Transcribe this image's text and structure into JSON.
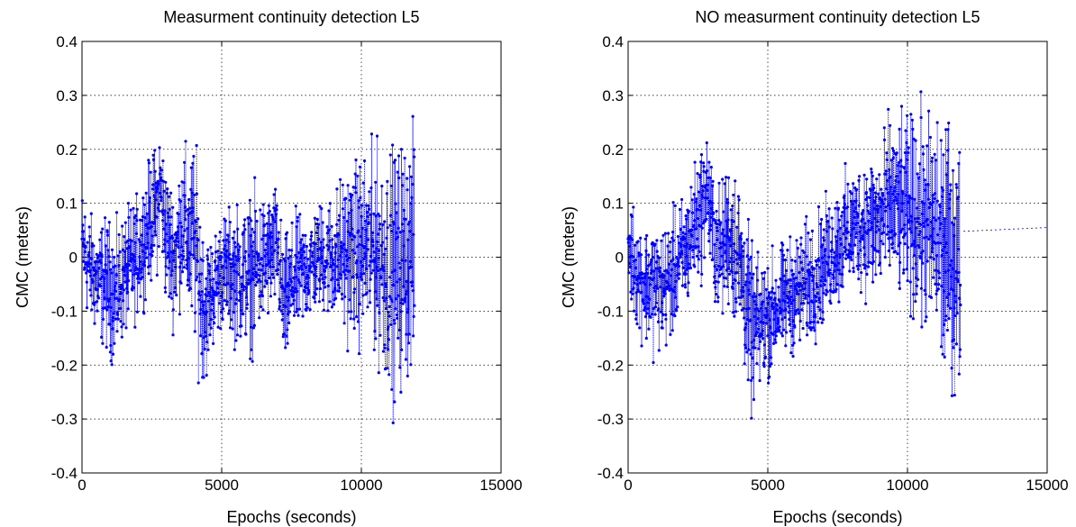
{
  "colors": {
    "series": "#0000ff",
    "axes": "#000000",
    "background": "#ffffff"
  },
  "chart_data": [
    {
      "type": "scatter",
      "title": "Measurment continuity detection L5",
      "xlabel": "Epochs (seconds)",
      "ylabel": "CMC (meters)",
      "xlim": [
        0,
        15000
      ],
      "ylim": [
        -0.4,
        0.4
      ],
      "xticks": [
        "0",
        "5000",
        "10000",
        "15000"
      ],
      "yticks": [
        "0.4",
        "0.3",
        "0.2",
        "0.1",
        "0",
        "-0.1",
        "-0.2",
        "-0.3",
        "-0.4"
      ],
      "grid": true,
      "marker": "dot-with-dotted-lines",
      "series": [
        {
          "x": [
            0,
            300,
            600,
            900,
            1200,
            1500,
            1800,
            2100,
            2400,
            2700,
            2800,
            3000,
            3300,
            3600,
            3900,
            4000,
            4200,
            4400,
            4600,
            5000,
            5400,
            5800,
            6200,
            6600,
            7000,
            7200,
            7600,
            8000,
            8500,
            9000,
            9500,
            10000,
            10500,
            11000,
            11200,
            11500,
            11800,
            11900
          ],
          "y_max": [
            0.15,
            0.1,
            0.09,
            0.1,
            0.08,
            0.1,
            0.12,
            0.15,
            0.2,
            0.24,
            0.27,
            0.2,
            0.15,
            0.24,
            0.22,
            0.28,
            0.16,
            0.08,
            0.06,
            0.1,
            0.12,
            0.13,
            0.15,
            0.14,
            0.16,
            0.05,
            0.1,
            0.1,
            0.12,
            0.15,
            0.2,
            0.22,
            0.24,
            0.25,
            0.25,
            0.27,
            0.27,
            0.28
          ],
          "y_min": [
            -0.1,
            -0.15,
            -0.18,
            -0.2,
            -0.23,
            -0.17,
            -0.15,
            -0.12,
            -0.08,
            -0.05,
            0.0,
            -0.12,
            -0.15,
            -0.1,
            -0.2,
            -0.2,
            -0.24,
            -0.27,
            -0.2,
            -0.15,
            -0.18,
            -0.2,
            -0.2,
            -0.15,
            -0.12,
            -0.25,
            -0.18,
            -0.15,
            -0.12,
            -0.15,
            -0.18,
            -0.2,
            -0.22,
            -0.3,
            -0.32,
            -0.28,
            -0.25,
            -0.3
          ]
        }
      ]
    },
    {
      "type": "scatter",
      "title": "NO measurment continuity detection L5",
      "xlabel": "Epochs (seconds)",
      "ylabel": "CMC (meters)",
      "xlim": [
        0,
        15000
      ],
      "ylim": [
        -0.4,
        0.4
      ],
      "xticks": [
        "0",
        "5000",
        "10000",
        "15000"
      ],
      "yticks": [
        "0.4",
        "0.3",
        "0.2",
        "0.1",
        "0",
        "-0.1",
        "-0.2",
        "-0.3",
        "-0.4"
      ],
      "grid": true,
      "marker": "dot-with-dotted-lines",
      "series": [
        {
          "x": [
            0,
            300,
            600,
            900,
            1200,
            1500,
            1800,
            2100,
            2400,
            2700,
            2800,
            3000,
            3300,
            3600,
            3900,
            4200,
            4400,
            4600,
            5000,
            5400,
            5800,
            6200,
            6600,
            7000,
            7400,
            7800,
            8200,
            8600,
            9000,
            9400,
            9800,
            10200,
            10500,
            10800,
            11000,
            11300,
            11600,
            11900
          ],
          "y_max": [
            0.15,
            0.1,
            0.08,
            0.1,
            0.08,
            0.1,
            0.12,
            0.15,
            0.2,
            0.24,
            0.27,
            0.2,
            0.15,
            0.22,
            0.2,
            0.12,
            0.05,
            0.02,
            0.03,
            0.04,
            0.06,
            0.08,
            0.1,
            0.12,
            0.15,
            0.18,
            0.2,
            0.22,
            0.25,
            0.3,
            0.28,
            0.3,
            0.32,
            0.3,
            0.33,
            0.32,
            0.27,
            0.26
          ],
          "y_min": [
            -0.1,
            -0.15,
            -0.18,
            -0.2,
            -0.2,
            -0.18,
            -0.15,
            -0.12,
            -0.08,
            -0.05,
            0.0,
            -0.1,
            -0.15,
            -0.12,
            -0.18,
            -0.25,
            -0.33,
            -0.28,
            -0.25,
            -0.22,
            -0.2,
            -0.2,
            -0.18,
            -0.15,
            -0.12,
            -0.1,
            -0.08,
            -0.1,
            -0.12,
            -0.1,
            -0.12,
            -0.15,
            -0.18,
            -0.2,
            -0.25,
            -0.31,
            -0.28,
            -0.31
          ]
        }
      ]
    }
  ]
}
